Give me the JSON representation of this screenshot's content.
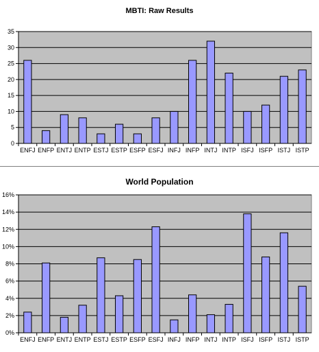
{
  "chart_data": [
    {
      "type": "bar",
      "title": "MBTI: Raw Results",
      "categories": [
        "ENFJ",
        "ENFP",
        "ENTJ",
        "ENTP",
        "ESTJ",
        "ESTP",
        "ESFP",
        "ESFJ",
        "INFJ",
        "INFP",
        "INTJ",
        "INTP",
        "ISFJ",
        "ISFP",
        "ISTJ",
        "ISTP"
      ],
      "values": [
        26,
        4,
        9,
        8,
        3,
        6,
        3,
        8,
        10,
        26,
        32,
        22,
        10,
        12,
        21,
        23
      ],
      "ylim": [
        0,
        35
      ],
      "yticks": [
        0,
        5,
        10,
        15,
        20,
        25,
        30,
        35
      ],
      "ytick_labels": [
        "0",
        "5",
        "10",
        "15",
        "20",
        "25",
        "30",
        "35"
      ],
      "grid": true,
      "legend": "none",
      "colors": {
        "plot_area": "#c0c0c0",
        "bar": "#9999ff",
        "bar_edge": "#000000",
        "grid": "#000000"
      }
    },
    {
      "type": "bar",
      "title": "World Population",
      "categories": [
        "ENFJ",
        "ENFP",
        "ENTJ",
        "ENTP",
        "ESTJ",
        "ESTP",
        "ESFP",
        "ESFJ",
        "INFJ",
        "INFP",
        "INTJ",
        "INTP",
        "ISFJ",
        "ISFP",
        "ISTJ",
        "ISTP"
      ],
      "values": [
        2.4,
        8.1,
        1.8,
        3.2,
        8.7,
        4.3,
        8.5,
        12.3,
        1.5,
        4.4,
        2.1,
        3.3,
        13.8,
        8.8,
        11.6,
        5.4
      ],
      "ylim": [
        0,
        16
      ],
      "yticks": [
        0,
        2,
        4,
        6,
        8,
        10,
        12,
        14,
        16
      ],
      "ytick_labels": [
        "0%",
        "2%",
        "4%",
        "6%",
        "8%",
        "10%",
        "12%",
        "14%",
        "16%"
      ],
      "grid": true,
      "legend": "none",
      "colors": {
        "plot_area": "#c0c0c0",
        "bar": "#9999ff",
        "bar_edge": "#000000",
        "grid": "#000000"
      }
    }
  ]
}
